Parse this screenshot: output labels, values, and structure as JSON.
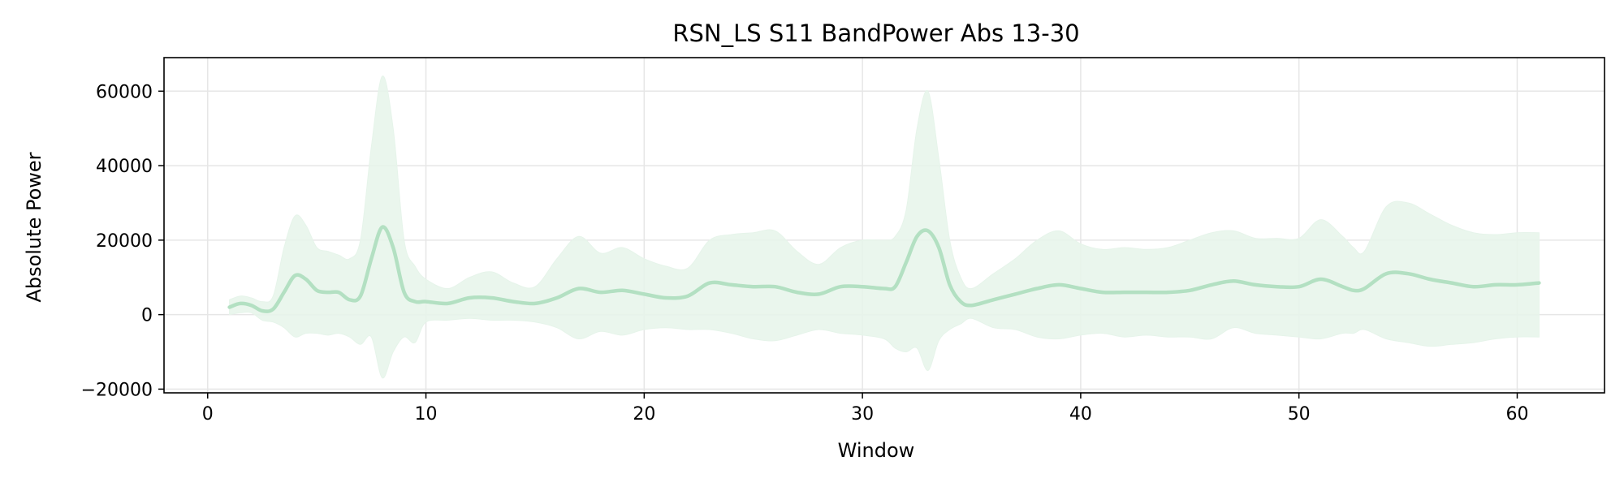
{
  "chart_data": {
    "type": "line",
    "title": "RSN_LS S11 BandPower Abs 13-30",
    "xlabel": "Window",
    "ylabel": "Absolute Power",
    "xlim": [
      -2,
      64
    ],
    "ylim": [
      -21000,
      69000
    ],
    "xticks": [
      0,
      10,
      20,
      30,
      40,
      50,
      60
    ],
    "yticks": [
      -20000,
      0,
      20000,
      40000,
      60000
    ],
    "ytick_labels": [
      "−20000",
      "0",
      "20000",
      "40000",
      "60000"
    ],
    "grid": true,
    "legend": "none",
    "series": [
      {
        "color": "#b3e0c2",
        "band_color": "#e6f4ea",
        "x": [
          1,
          1.5,
          2,
          2.5,
          3,
          3.5,
          4,
          4.5,
          5,
          5.5,
          6,
          6.5,
          7,
          7.5,
          8,
          8.5,
          9,
          9.5,
          10,
          11,
          12,
          13,
          14,
          15,
          16,
          17,
          18,
          19,
          20,
          21,
          22,
          23,
          24,
          25,
          26,
          27,
          28,
          29,
          30,
          31,
          31.5,
          32,
          32.5,
          33,
          33.5,
          34,
          34.5,
          35,
          36,
          37,
          38,
          39,
          40,
          41,
          42,
          43,
          44,
          45,
          46,
          47,
          48,
          49,
          50,
          51,
          52,
          52.5,
          53,
          54,
          55,
          56,
          57,
          58,
          59,
          60,
          61
        ],
        "y": [
          2000,
          3000,
          2500,
          1000,
          1500,
          6000,
          10500,
          9500,
          6500,
          6000,
          6000,
          4000,
          5000,
          15000,
          23500,
          18000,
          6000,
          3500,
          3500,
          3000,
          4500,
          4500,
          3500,
          3000,
          4500,
          7000,
          6000,
          6500,
          5500,
          4500,
          5000,
          8500,
          8000,
          7500,
          7500,
          6000,
          5500,
          7500,
          7500,
          7000,
          7500,
          14000,
          21000,
          22500,
          18000,
          8000,
          3500,
          2500,
          4000,
          5500,
          7000,
          8000,
          7000,
          6000,
          6000,
          6000,
          6000,
          6500,
          8000,
          9000,
          8000,
          7500,
          7500,
          9500,
          7500,
          6500,
          7000,
          11000,
          11000,
          9500,
          8500,
          7500,
          8000,
          8000,
          8500
        ],
        "upper": [
          4000,
          5000,
          4500,
          3500,
          5000,
          18000,
          26500,
          24000,
          18000,
          17000,
          16000,
          15000,
          20000,
          45000,
          64000,
          50000,
          20000,
          13000,
          9500,
          7000,
          10000,
          11500,
          8500,
          7500,
          15000,
          21000,
          16500,
          18000,
          15000,
          13000,
          12500,
          20000,
          21500,
          22000,
          22500,
          17000,
          13500,
          18000,
          20000,
          20000,
          21000,
          28000,
          50000,
          60000,
          42000,
          20000,
          10000,
          7000,
          11000,
          15000,
          20000,
          22500,
          19000,
          17500,
          18000,
          17500,
          18000,
          20000,
          22000,
          22500,
          20500,
          20500,
          20500,
          25500,
          21000,
          18000,
          17000,
          29000,
          30000,
          27000,
          24000,
          22000,
          21500,
          22000,
          22000
        ],
        "lower": [
          0,
          500,
          500,
          -1500,
          -2000,
          -3500,
          -6000,
          -5000,
          -5000,
          -5500,
          -5000,
          -6000,
          -8000,
          -6000,
          -17000,
          -10000,
          -6000,
          -7500,
          -2000,
          -1500,
          -1000,
          -1500,
          -1500,
          -2000,
          -3500,
          -6500,
          -4500,
          -5500,
          -4000,
          -3500,
          -4000,
          -4000,
          -5000,
          -6500,
          -7000,
          -5500,
          -4000,
          -5000,
          -5500,
          -6500,
          -9000,
          -10000,
          -9000,
          -15000,
          -7000,
          -4000,
          -2500,
          -1000,
          -3500,
          -4000,
          -6000,
          -6500,
          -5500,
          -5000,
          -6000,
          -5500,
          -6000,
          -6000,
          -6500,
          -3500,
          -5000,
          -5500,
          -6000,
          -6500,
          -5000,
          -5000,
          -4000,
          -6500,
          -7500,
          -8500,
          -8000,
          -7500,
          -6500,
          -6000,
          -6000
        ]
      }
    ]
  }
}
